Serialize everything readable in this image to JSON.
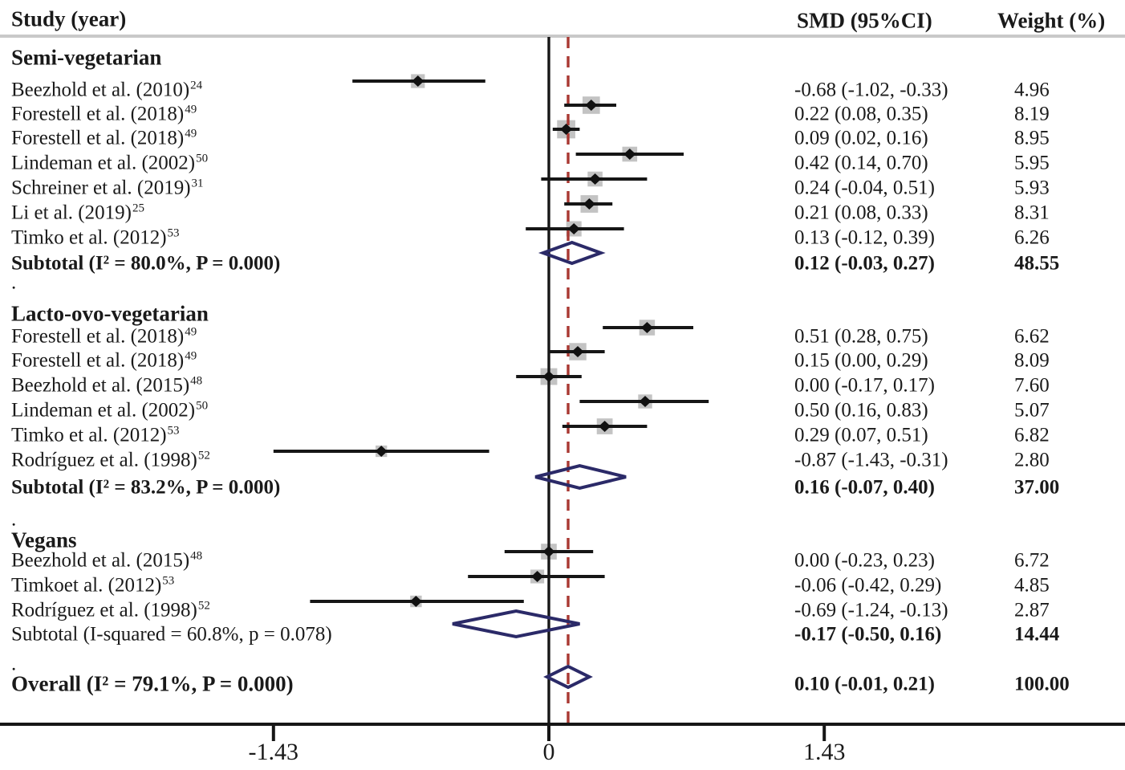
{
  "header": {
    "study_col": "Study (year)",
    "smd_col": "SMD (95%CI)",
    "weight_col": "Weight (%)"
  },
  "separator_dot": ".",
  "axis": {
    "tick_labels": [
      "-1.43",
      "0",
      "1.43"
    ],
    "tick_values": [
      -1.43,
      0,
      1.43
    ]
  },
  "colors": {
    "diamond_outline": "#2b2a68",
    "overall_dashed_line": "#a93832",
    "ci_line": "#161616",
    "square_fill": "#c3c3c3",
    "point_fill": "#111111",
    "header_rule": "#c9c9c9",
    "axis_line": "#161616"
  },
  "chart_data": {
    "type": "forest",
    "title": "",
    "x_ticks": [
      -1.43,
      0,
      1.43
    ],
    "null_line": 0,
    "overall_reference_line": 0.1,
    "groups": [
      {
        "name": "Semi-vegetarian",
        "i_squared": "80.0%",
        "p_value": "0.000",
        "studies": [
          {
            "label": "Beezhold et al. (2010)",
            "ref": "24",
            "smd": -0.68,
            "ci": [
              -1.02,
              -0.33
            ],
            "smd_text": "-0.68 (-1.02, -0.33)",
            "weight": 4.96,
            "weight_text": "4.96"
          },
          {
            "label": "Forestell et al. (2018)",
            "ref": "49",
            "smd": 0.22,
            "ci": [
              0.08,
              0.35
            ],
            "smd_text": "0.22 (0.08, 0.35)",
            "weight": 8.19,
            "weight_text": "8.19"
          },
          {
            "label": "Forestell et al. (2018)",
            "ref": "49",
            "smd": 0.09,
            "ci": [
              0.02,
              0.16
            ],
            "smd_text": "0.09 (0.02, 0.16)",
            "weight": 8.95,
            "weight_text": "8.95"
          },
          {
            "label": "Lindeman et al. (2002)",
            "ref": "50",
            "smd": 0.42,
            "ci": [
              0.14,
              0.7
            ],
            "smd_text": "0.42 (0.14, 0.70)",
            "weight": 5.95,
            "weight_text": "5.95"
          },
          {
            "label": "Schreiner et al. (2019)",
            "ref": "31",
            "smd": 0.24,
            "ci": [
              -0.04,
              0.51
            ],
            "smd_text": "0.24 (-0.04, 0.51)",
            "weight": 5.93,
            "weight_text": "5.93"
          },
          {
            "label": "Li et al. (2019)",
            "ref": "25",
            "smd": 0.21,
            "ci": [
              0.08,
              0.33
            ],
            "smd_text": "0.21 (0.08, 0.33)",
            "weight": 8.31,
            "weight_text": "8.31"
          },
          {
            "label": "Timko et al. (2012)",
            "ref": "53",
            "smd": 0.13,
            "ci": [
              -0.12,
              0.39
            ],
            "smd_text": "0.13 (-0.12, 0.39)",
            "weight": 6.26,
            "weight_text": "6.26"
          }
        ],
        "subtotal": {
          "label": "Subtotal  (I² = 80.0%, P = 0.000)",
          "bold": true,
          "smd": 0.12,
          "ci": [
            -0.03,
            0.27
          ],
          "smd_text": "0.12 (-0.03, 0.27)",
          "weight_text": "48.55"
        }
      },
      {
        "name": "Lacto-ovo-vegetarian",
        "i_squared": "83.2%",
        "p_value": "0.000",
        "studies": [
          {
            "label": "Forestell et al. (2018)",
            "ref": "49",
            "smd": 0.51,
            "ci": [
              0.28,
              0.75
            ],
            "smd_text": "0.51 (0.28, 0.75)",
            "weight": 6.62,
            "weight_text": "6.62"
          },
          {
            "label": "Forestell et al. (2018)",
            "ref": "49",
            "smd": 0.15,
            "ci": [
              0.0,
              0.29
            ],
            "smd_text": "0.15 (0.00, 0.29)",
            "weight": 8.09,
            "weight_text": "8.09"
          },
          {
            "label": "Beezhold et al. (2015)",
            "ref": "48",
            "smd": 0.0,
            "ci": [
              -0.17,
              0.17
            ],
            "smd_text": "0.00 (-0.17, 0.17)",
            "weight": 7.6,
            "weight_text": "7.60"
          },
          {
            "label": "Lindeman et al. (2002)",
            "ref": "50",
            "smd": 0.5,
            "ci": [
              0.16,
              0.83
            ],
            "smd_text": "0.50 (0.16, 0.83)",
            "weight": 5.07,
            "weight_text": "5.07"
          },
          {
            "label": "Timko et al. (2012)",
            "ref": "53",
            "smd": 0.29,
            "ci": [
              0.07,
              0.51
            ],
            "smd_text": "0.29 (0.07, 0.51)",
            "weight": 6.82,
            "weight_text": "6.82"
          },
          {
            "label": "Rodríguez et al. (1998)",
            "ref": "52",
            "smd": -0.87,
            "ci": [
              -1.43,
              -0.31
            ],
            "smd_text": "-0.87 (-1.43, -0.31)",
            "weight": 2.8,
            "weight_text": "2.80"
          }
        ],
        "subtotal": {
          "label": "Subtotal  (I² = 83.2%, P = 0.000)",
          "bold": true,
          "smd": 0.16,
          "ci": [
            -0.07,
            0.4
          ],
          "smd_text": "0.16 (-0.07, 0.40)",
          "weight_text": "37.00"
        }
      },
      {
        "name": "Vegans",
        "i_squared": "60.8%",
        "p_value": "0.078",
        "studies": [
          {
            "label": "Beezhold et al. (2015)",
            "ref": "48",
            "smd": 0.0,
            "ci": [
              -0.23,
              0.23
            ],
            "smd_text": "0.00 (-0.23, 0.23)",
            "weight": 6.72,
            "weight_text": "6.72"
          },
          {
            "label": "Timkoet al. (2012)",
            "ref": "53",
            "smd": -0.06,
            "ci": [
              -0.42,
              0.29
            ],
            "smd_text": "-0.06 (-0.42, 0.29)",
            "weight": 4.85,
            "weight_text": "4.85"
          },
          {
            "label": "Rodríguez et al. (1998)",
            "ref": "52",
            "smd": -0.69,
            "ci": [
              -1.24,
              -0.13
            ],
            "smd_text": "-0.69 (-1.24, -0.13)",
            "weight": 2.87,
            "weight_text": "2.87"
          }
        ],
        "subtotal": {
          "label": "Subtotal  (I-squared = 60.8%, p = 0.078)",
          "bold": false,
          "smd": -0.17,
          "ci": [
            -0.5,
            0.16
          ],
          "smd_text": "-0.17 (-0.50, 0.16)",
          "weight_text": "14.44"
        }
      }
    ],
    "overall": {
      "label": "Overall  (I² = 79.1%, P = 0.000)",
      "i_squared": "79.1%",
      "p_value": "0.000",
      "smd": 0.1,
      "ci": [
        -0.01,
        0.21
      ],
      "smd_text": "0.10 (-0.01, 0.21)",
      "weight_text": "100.00"
    }
  }
}
